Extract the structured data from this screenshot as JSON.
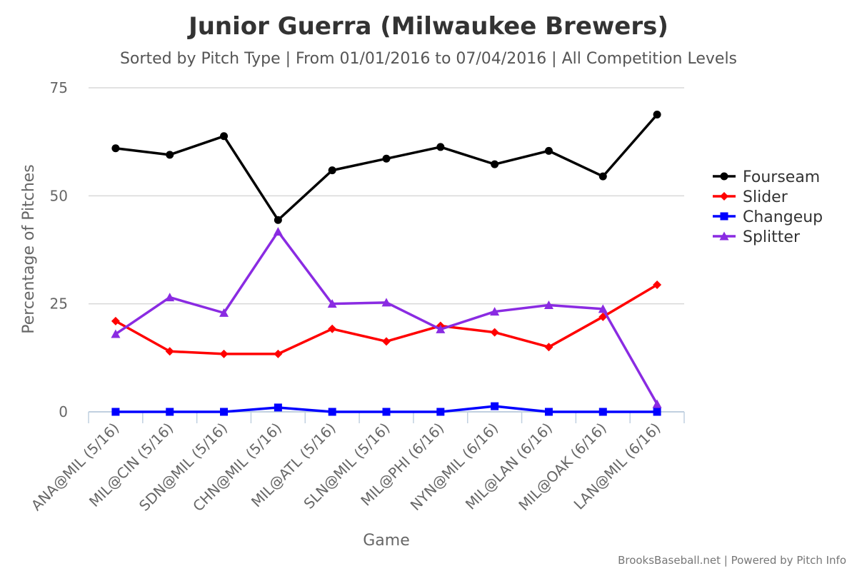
{
  "chart_data": {
    "type": "line",
    "title": "Junior Guerra (Milwaukee Brewers)",
    "subtitle": "Sorted by Pitch Type | From 01/01/2016 to 07/04/2016 | All Competition Levels",
    "xlabel": "Game",
    "ylabel": "Percentage of Pitches",
    "ylim": [
      0,
      75
    ],
    "yticks": [
      "0",
      "25",
      "50",
      "75"
    ],
    "categories": [
      "ANA@MIL (5/16)",
      "MIL@CIN (5/16)",
      "SDN@MIL (5/16)",
      "CHN@MIL (5/16)",
      "MIL@ATL (5/16)",
      "SLN@MIL (5/16)",
      "MIL@PHI (6/16)",
      "NYN@MIL (6/16)",
      "MIL@LAN (6/16)",
      "MIL@OAK (6/16)",
      "LAN@MIL (6/16)"
    ],
    "grid": true,
    "legend": "right",
    "series": [
      {
        "name": "Fourseam",
        "color": "#000000",
        "marker": "circle",
        "values": [
          61.0,
          59.5,
          63.8,
          44.4,
          55.9,
          58.6,
          61.3,
          57.3,
          60.4,
          54.5,
          68.8
        ]
      },
      {
        "name": "Slider",
        "color": "#ff0000",
        "marker": "diamond",
        "values": [
          21.0,
          14.0,
          13.4,
          13.4,
          19.2,
          16.3,
          19.9,
          18.4,
          15.0,
          22.0,
          29.4
        ]
      },
      {
        "name": "Changeup",
        "color": "#0000ff",
        "marker": "square",
        "values": [
          0.0,
          0.0,
          0.0,
          1.0,
          0.0,
          0.0,
          0.0,
          1.3,
          0.0,
          0.0,
          0.0
        ]
      },
      {
        "name": "Splitter",
        "color": "#8a2be2",
        "marker": "triangle",
        "values": [
          18.0,
          26.5,
          22.9,
          41.7,
          25.0,
          25.3,
          19.1,
          23.2,
          24.7,
          23.8,
          1.8
        ]
      }
    ]
  },
  "credits": "BrooksBaseball.net | Powered by Pitch Info"
}
